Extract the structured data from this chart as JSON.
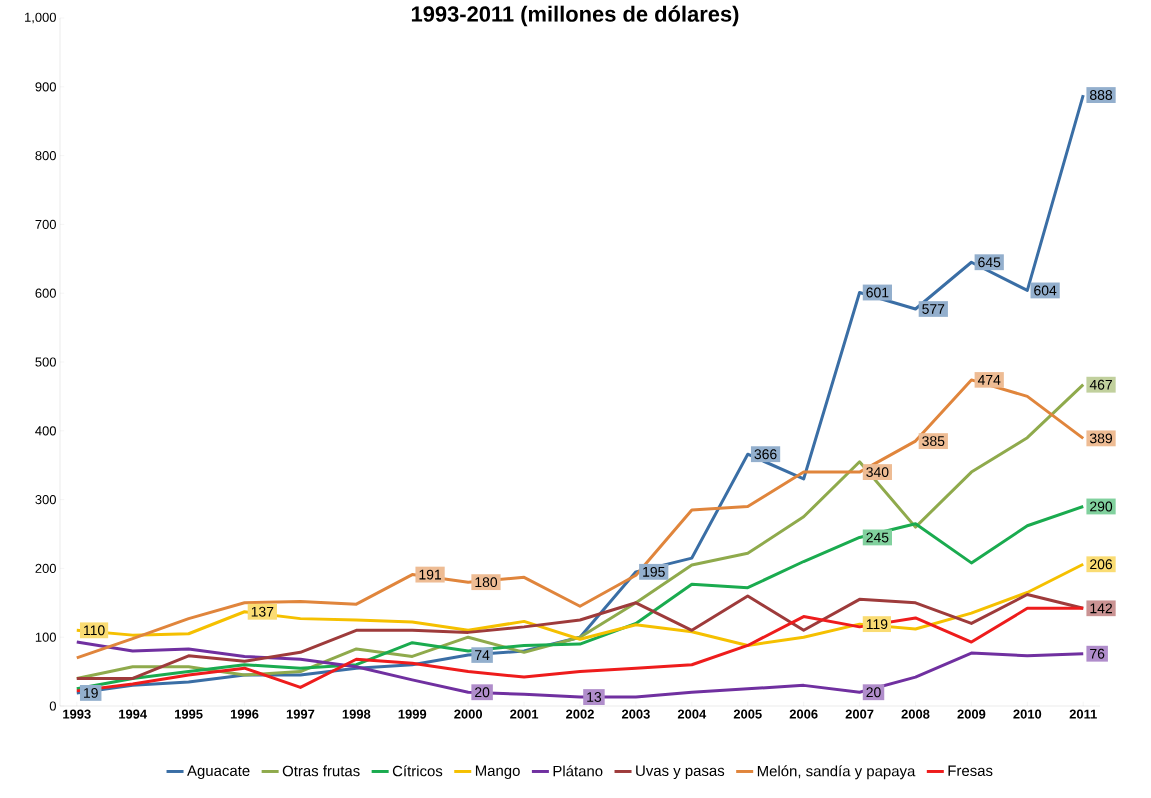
{
  "chart_data": {
    "type": "line",
    "title": "1993-2011 (millones de dólares)",
    "categories": [
      "1993",
      "1994",
      "1995",
      "1996",
      "1997",
      "1998",
      "1999",
      "2000",
      "2001",
      "2002",
      "2003",
      "2004",
      "2005",
      "2006",
      "2007",
      "2008",
      "2009",
      "2010",
      "2011"
    ],
    "ylim": [
      0,
      1000
    ],
    "yticks": [
      0,
      100,
      200,
      300,
      400,
      500,
      600,
      700,
      800,
      900,
      {
        "value": 1000,
        "label": "1,000"
      }
    ],
    "grid": false,
    "legend": "bottom",
    "series": [
      {
        "name": "Aguacate",
        "color": "#3a6ea5",
        "values": [
          19,
          30,
          35,
          45,
          45,
          55,
          60,
          74,
          80,
          100,
          195,
          215,
          366,
          330,
          601,
          577,
          645,
          604,
          888
        ],
        "value_labels": [
          "19",
          null,
          null,
          null,
          null,
          null,
          null,
          "74",
          null,
          null,
          "195",
          null,
          "366",
          null,
          "601",
          "577",
          "645",
          "604",
          "888"
        ]
      },
      {
        "name": "Otras frutas",
        "color": "#8faa4c",
        "values": [
          40,
          57,
          57,
          45,
          50,
          83,
          72,
          100,
          78,
          100,
          150,
          205,
          222,
          275,
          355,
          260,
          340,
          390,
          467
        ],
        "value_labels": [
          null,
          null,
          null,
          null,
          null,
          null,
          null,
          null,
          null,
          null,
          null,
          null,
          null,
          null,
          null,
          null,
          null,
          null,
          "467"
        ]
      },
      {
        "name": "Cítricos",
        "color": "#1aab4f",
        "values": [
          25,
          40,
          50,
          60,
          55,
          60,
          92,
          80,
          88,
          90,
          120,
          177,
          172,
          210,
          245,
          265,
          208,
          262,
          290
        ],
        "value_labels": [
          null,
          null,
          null,
          null,
          null,
          null,
          null,
          null,
          null,
          null,
          null,
          null,
          null,
          null,
          "245",
          null,
          null,
          null,
          "290"
        ]
      },
      {
        "name": "Mango",
        "color": "#f5c000",
        "values": [
          110,
          103,
          105,
          137,
          127,
          125,
          122,
          110,
          123,
          97,
          118,
          108,
          88,
          100,
          119,
          112,
          135,
          165,
          206
        ],
        "value_labels": [
          "110",
          null,
          null,
          "137",
          null,
          null,
          null,
          null,
          null,
          null,
          null,
          null,
          null,
          null,
          "119",
          null,
          null,
          null,
          "206"
        ]
      },
      {
        "name": "Plátano",
        "color": "#7030a0",
        "values": [
          93,
          80,
          83,
          72,
          68,
          57,
          38,
          20,
          17,
          13,
          13,
          20,
          25,
          30,
          20,
          42,
          77,
          73,
          76
        ],
        "value_labels": [
          null,
          null,
          null,
          null,
          null,
          null,
          null,
          "20",
          null,
          "13",
          null,
          null,
          null,
          null,
          "20",
          null,
          null,
          null,
          "76"
        ]
      },
      {
        "name": "Uvas y pasas",
        "color": "#9e3b3b",
        "values": [
          40,
          40,
          73,
          65,
          78,
          110,
          110,
          107,
          115,
          125,
          150,
          110,
          160,
          110,
          155,
          150,
          120,
          162,
          142
        ],
        "value_labels": [
          null,
          null,
          null,
          null,
          null,
          null,
          null,
          null,
          null,
          null,
          null,
          null,
          null,
          null,
          null,
          null,
          null,
          null,
          "142"
        ]
      },
      {
        "name": "Melón, sandía y papaya",
        "color": "#e0853c",
        "values": [
          70,
          98,
          127,
          150,
          152,
          148,
          191,
          180,
          187,
          145,
          190,
          285,
          290,
          340,
          340,
          385,
          474,
          450,
          389
        ],
        "value_labels": [
          null,
          null,
          null,
          null,
          null,
          null,
          "191",
          "180",
          null,
          null,
          null,
          null,
          null,
          null,
          "340",
          "385",
          "474",
          null,
          "389"
        ]
      },
      {
        "name": "Fresas",
        "color": "#ee1c1c",
        "values": [
          22,
          32,
          45,
          55,
          27,
          68,
          62,
          50,
          42,
          50,
          55,
          60,
          88,
          130,
          115,
          128,
          93,
          142,
          142
        ]
      }
    ]
  }
}
